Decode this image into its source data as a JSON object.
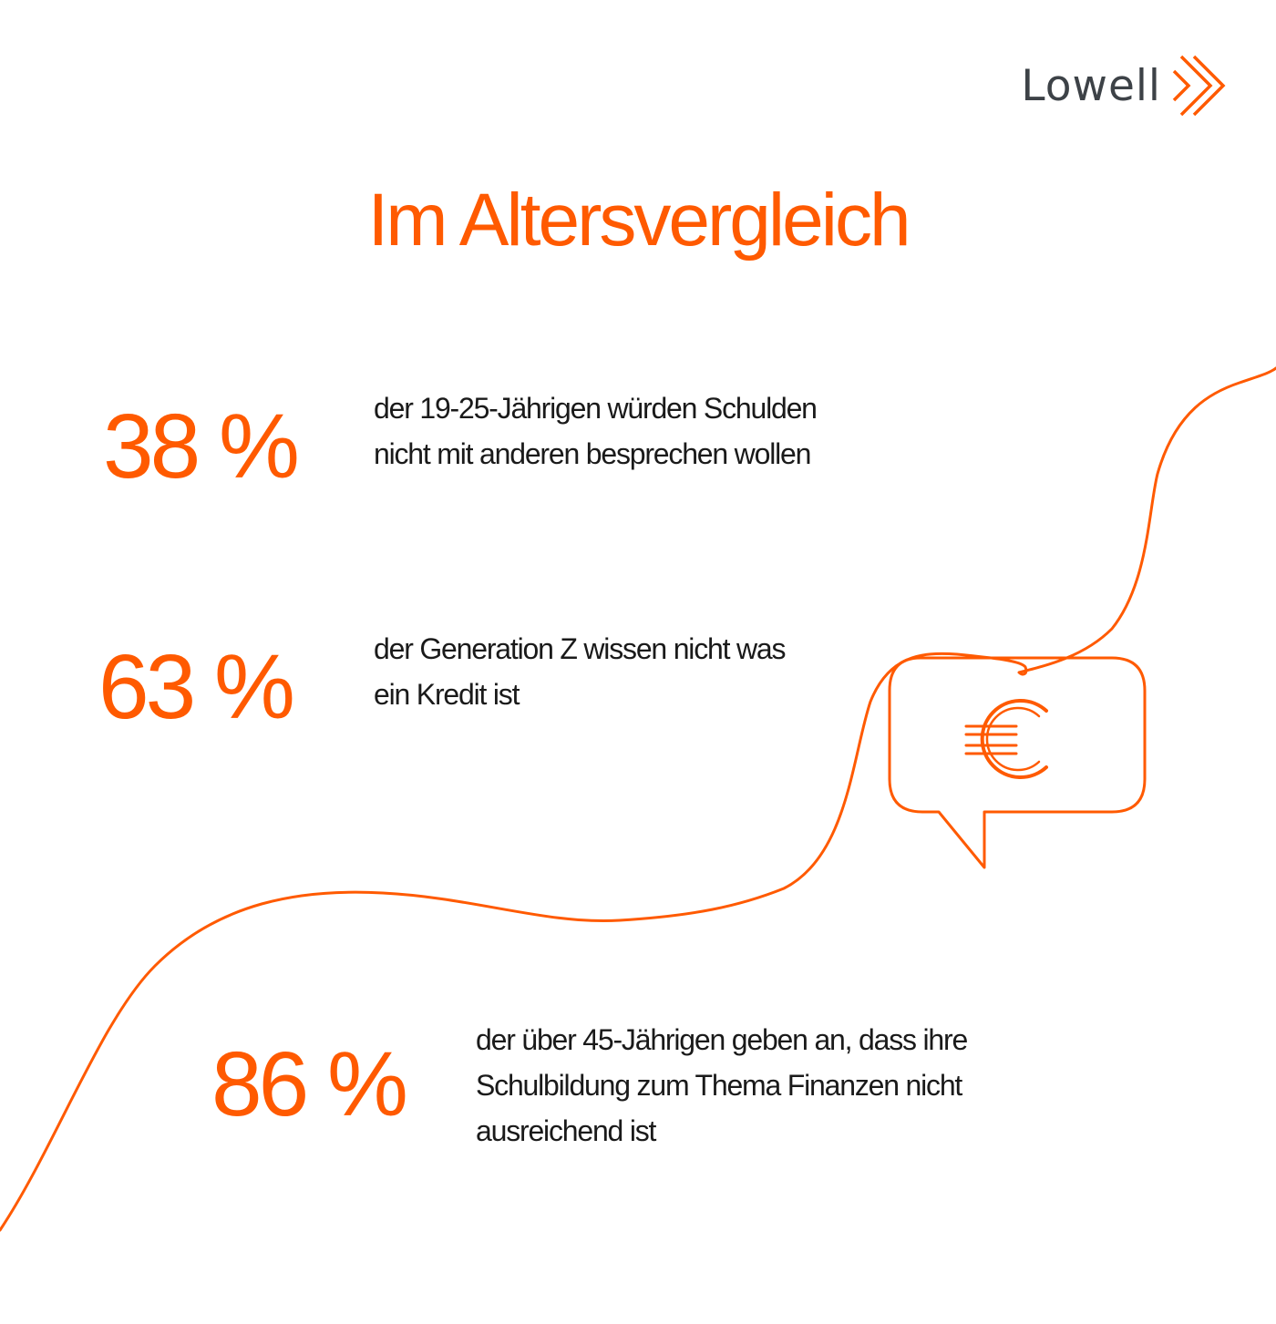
{
  "brand": {
    "name": "Lowell",
    "logo_icon": "double-chevron-right-icon",
    "accent_color": "#ff5a00",
    "text_color": "#3d4247"
  },
  "title": "Im Altersvergleich",
  "stats": [
    {
      "value": "38 %",
      "lines": [
        "der 19-25-Jährigen würden Schulden",
        "nicht mit anderen besprechen wollen"
      ]
    },
    {
      "value": "63 %",
      "lines": [
        "der Generation Z wissen nicht was",
        "ein Kredit ist"
      ]
    },
    {
      "value": "86 %",
      "lines": [
        "der über 45-Jährigen geben an, dass ihre",
        "Schulbildung zum Thema Finanzen nicht",
        "ausreichend ist"
      ]
    }
  ],
  "illustration": {
    "icon": "euro-speech-bubble-icon",
    "line": "orange-line-art"
  }
}
